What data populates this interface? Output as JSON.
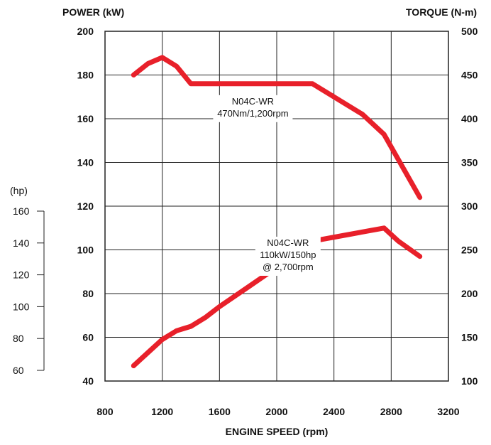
{
  "chart_data": {
    "type": "line",
    "left_axis_title": "POWER (kW)",
    "right_axis_title": "TORQUE (N-m)",
    "hp_axis_title": "(hp)",
    "xlabel": "ENGINE SPEED (rpm)",
    "grid": true,
    "xlim": [
      800,
      3200
    ],
    "x_ticks": [
      800,
      1200,
      1600,
      2000,
      2400,
      2800,
      3200
    ],
    "ylim_power": [
      40,
      200
    ],
    "y_ticks_power": [
      40,
      60,
      80,
      100,
      120,
      140,
      160,
      180,
      200
    ],
    "ylim_torque": [
      100,
      500
    ],
    "y_ticks_torque": [
      100,
      150,
      200,
      250,
      300,
      350,
      400,
      450,
      500
    ],
    "hp_ticks": [
      160,
      140,
      120,
      100,
      80,
      60
    ],
    "line_color": "#e8202a",
    "series": [
      {
        "axis": "torque",
        "x": [
          1000,
          1100,
          1200,
          1300,
          1400,
          2250,
          2600,
          2750,
          3000
        ],
        "y": [
          450,
          463,
          470,
          460,
          440,
          440,
          405,
          382,
          310
        ]
      },
      {
        "axis": "power",
        "x": [
          1000,
          1100,
          1200,
          1300,
          1400,
          1500,
          1600,
          1800,
          2000,
          2250,
          2500,
          2750,
          2850,
          3000
        ],
        "y": [
          47,
          53,
          59,
          63,
          65,
          69,
          74,
          83,
          92,
          104,
          107,
          110,
          104,
          97
        ]
      }
    ],
    "annotations": [
      {
        "lines": [
          "N04C-WR",
          "470Nm/1,200rpm"
        ],
        "axis": "torque",
        "x": 2255,
        "y": 440
      },
      {
        "lines": [
          "N04C-WR",
          "110kW/150hp",
          "@ 2,700rpm"
        ],
        "axis": "power",
        "x": 2500,
        "y": 107
      }
    ]
  }
}
